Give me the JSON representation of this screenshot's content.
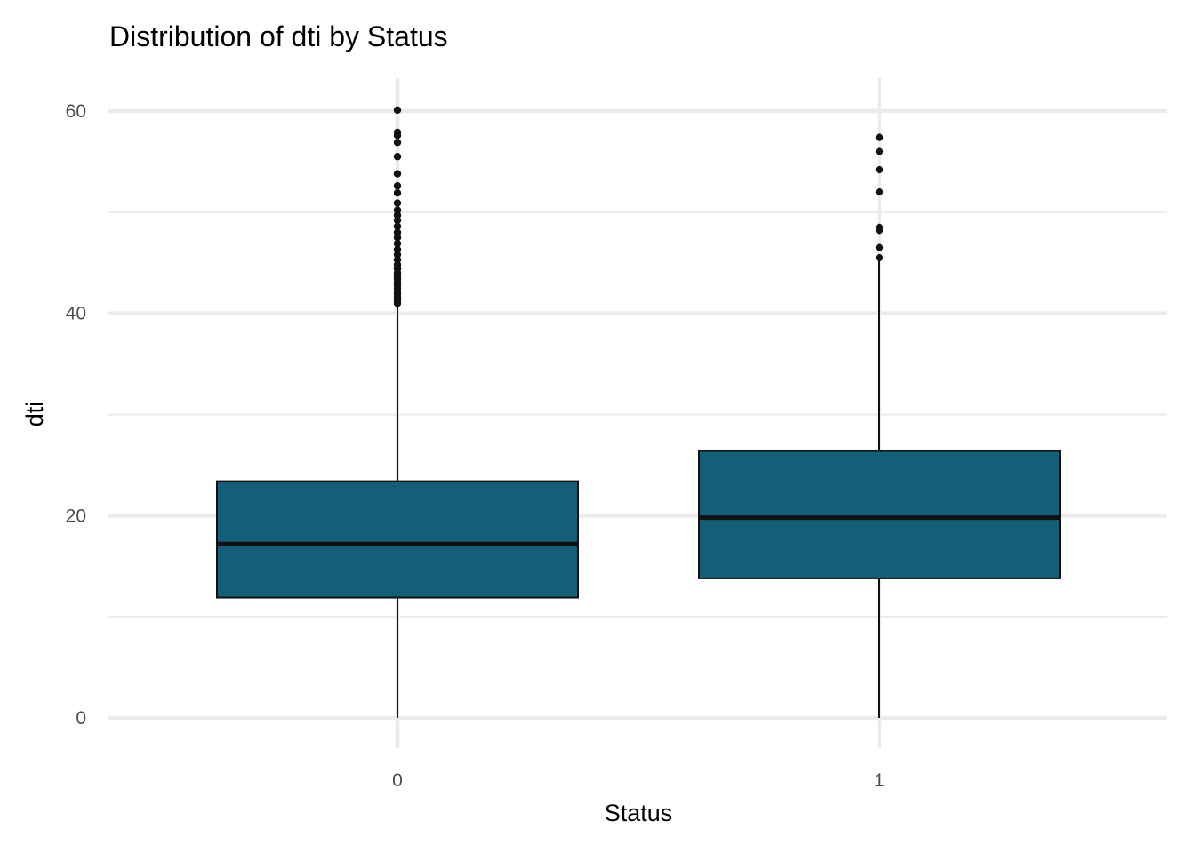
{
  "chart_data": {
    "type": "box",
    "title": "Distribution of dti by Status",
    "xlabel": "Status",
    "ylabel": "dti",
    "categories": [
      "0",
      "1"
    ],
    "ylim": [
      -2.5,
      63
    ],
    "y_ticks": [
      0,
      20,
      40,
      60
    ],
    "y_minor_ticks": [
      10,
      30,
      50
    ],
    "grid": true,
    "legend": "none",
    "fill_color": "#135f77",
    "series": [
      {
        "category": "0",
        "min": 0,
        "q1": 11.9,
        "median": 17.2,
        "q3": 23.4,
        "max": 40.8,
        "outliers": [
          41.0,
          41.3,
          41.6,
          41.9,
          42.2,
          42.5,
          42.8,
          43.1,
          43.4,
          43.7,
          44.0,
          44.4,
          44.8,
          45.3,
          45.8,
          46.3,
          46.9,
          47.5,
          48.0,
          48.6,
          49.2,
          49.7,
          50.2,
          50.9,
          51.9,
          52.6,
          53.8,
          55.5,
          56.9,
          57.6,
          57.9,
          60.1
        ]
      },
      {
        "category": "1",
        "min": 0,
        "q1": 13.8,
        "median": 19.8,
        "q3": 26.4,
        "max": 45.3,
        "outliers": [
          45.5,
          46.5,
          48.2,
          48.5,
          52.0,
          54.2,
          56.0,
          57.4
        ]
      }
    ]
  }
}
